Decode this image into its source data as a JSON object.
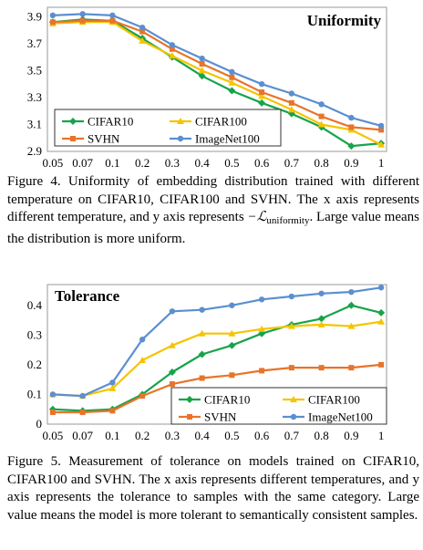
{
  "figure1": {
    "caption": {
      "lead": "Figure 4. Uniformity of embedding distribution trained with different temperature on CIFAR10, CIFAR100 and SVHN. The x axis represents different temperature, and y axis represents",
      "math_prefix": "−",
      "math_symbol": "ℒ",
      "math_sub": "uniformity",
      "tail": ". Large value means the distribution is more uniform."
    }
  },
  "figure2": {
    "caption": "Figure 5. Measurement of tolerance on models trained on CIFAR10, CIFAR100 and SVHN. The x axis represents different temperatures, and y axis represents the tolerance to samples with the same category. Large value means the model is more tolerant to semantically consistent samples."
  },
  "colors": {
    "CIFAR10": "#17a34a",
    "CIFAR100": "#f5c400",
    "SVHN": "#e8742a",
    "ImageNet100": "#5b8fd0"
  },
  "chart_data": [
    {
      "type": "line",
      "title": "Uniformity",
      "xlabel": "",
      "ylabel": "",
      "categories": [
        "0.05",
        "0.07",
        "0.1",
        "0.2",
        "0.3",
        "0.4",
        "0.5",
        "0.6",
        "0.7",
        "0.8",
        "0.9",
        "1"
      ],
      "yticks": [
        "2.9",
        "3.1",
        "3.3",
        "3.5",
        "3.7",
        "3.9"
      ],
      "ylim": [
        2.9,
        3.97
      ],
      "grid": false,
      "legend_placement": "bottom-left",
      "series": [
        {
          "name": "CIFAR10",
          "marker": "diamond",
          "values": [
            3.86,
            3.88,
            3.87,
            3.74,
            3.6,
            3.46,
            3.35,
            3.26,
            3.18,
            3.08,
            2.94,
            2.96
          ]
        },
        {
          "name": "CIFAR100",
          "marker": "triangle",
          "values": [
            3.85,
            3.86,
            3.86,
            3.72,
            3.61,
            3.5,
            3.41,
            3.31,
            3.21,
            3.1,
            3.06,
            2.95
          ]
        },
        {
          "name": "SVHN",
          "marker": "square",
          "values": [
            3.86,
            3.87,
            3.87,
            3.79,
            3.66,
            3.55,
            3.45,
            3.34,
            3.26,
            3.16,
            3.08,
            3.06
          ]
        },
        {
          "name": "ImageNet100",
          "marker": "circle",
          "values": [
            3.91,
            3.92,
            3.91,
            3.82,
            3.69,
            3.59,
            3.49,
            3.4,
            3.33,
            3.25,
            3.15,
            3.09
          ]
        }
      ]
    },
    {
      "type": "line",
      "title": "Tolerance",
      "xlabel": "",
      "ylabel": "",
      "categories": [
        "0.05",
        "0.07",
        "0.1",
        "0.2",
        "0.3",
        "0.4",
        "0.5",
        "0.6",
        "0.7",
        "0.8",
        "0.9",
        "1"
      ],
      "yticks": [
        "0",
        "0.1",
        "0.2",
        "0.3",
        "0.4"
      ],
      "ylim": [
        0,
        0.47
      ],
      "grid": false,
      "legend_placement": "bottom-right",
      "series": [
        {
          "name": "CIFAR10",
          "marker": "diamond",
          "values": [
            0.05,
            0.045,
            0.05,
            0.1,
            0.175,
            0.235,
            0.265,
            0.305,
            0.335,
            0.355,
            0.4,
            0.375
          ]
        },
        {
          "name": "CIFAR100",
          "marker": "triangle",
          "values": [
            0.1,
            0.095,
            0.12,
            0.215,
            0.265,
            0.305,
            0.305,
            0.32,
            0.33,
            0.335,
            0.33,
            0.345
          ]
        },
        {
          "name": "SVHN",
          "marker": "square",
          "values": [
            0.04,
            0.04,
            0.045,
            0.095,
            0.135,
            0.155,
            0.165,
            0.18,
            0.19,
            0.19,
            0.19,
            0.2
          ]
        },
        {
          "name": "ImageNet100",
          "marker": "circle",
          "values": [
            0.1,
            0.095,
            0.14,
            0.285,
            0.38,
            0.385,
            0.4,
            0.42,
            0.43,
            0.44,
            0.445,
            0.46
          ]
        }
      ]
    }
  ]
}
